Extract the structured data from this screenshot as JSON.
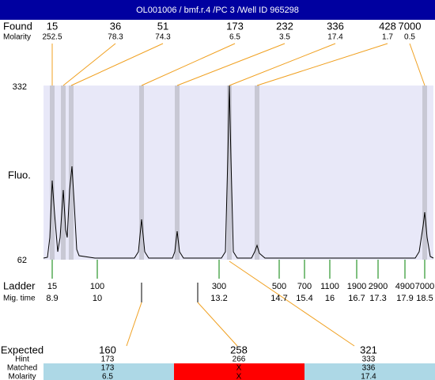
{
  "header": {
    "title": "OL001006 / bmf.r.4 /PC 3 /Well ID 965298"
  },
  "found": {
    "label": "Found",
    "molarity_label": "Molarity",
    "peaks": [
      {
        "size": 15,
        "molarity": 252.5
      },
      {
        "size": 36,
        "molarity": 78.3
      },
      {
        "size": 51,
        "molarity": 74.3
      },
      {
        "size": 173,
        "molarity": 6.5
      },
      {
        "size": 232,
        "molarity": 3.5
      },
      {
        "size": 336,
        "molarity": 17.4
      },
      {
        "size": 428,
        "molarity": 1.7
      },
      {
        "size": 7000,
        "molarity": 0.5
      }
    ]
  },
  "plot": {
    "y_label": "Fluo.",
    "y_max": 332,
    "y_min": 62
  },
  "ladder": {
    "label": "Ladder",
    "time_label": "Mig. time",
    "markers": [
      {
        "size": 15,
        "time": 8.9
      },
      {
        "size": 100,
        "time": 10
      },
      {
        "size": 300,
        "time": 13.2
      },
      {
        "size": 500,
        "time": 14.7
      },
      {
        "size": 700,
        "time": 15.4
      },
      {
        "size": 1100,
        "time": 16
      },
      {
        "size": 1900,
        "time": 16.7
      },
      {
        "size": 2900,
        "time": 17.3
      },
      {
        "size": 4900,
        "time": 17.9
      },
      {
        "size": 7000,
        "time": 18.5
      }
    ]
  },
  "expected": {
    "labels": [
      "Expected",
      "Hint",
      "Matched",
      "Molarity"
    ],
    "items": [
      {
        "expected": 160,
        "hint": 173,
        "matched": 173,
        "molarity": 6.5
      },
      {
        "expected": 258,
        "hint": 266,
        "matched": "X",
        "molarity": "X"
      },
      {
        "expected": 321,
        "hint": 333,
        "matched": 336,
        "molarity": 17.4
      }
    ]
  }
}
